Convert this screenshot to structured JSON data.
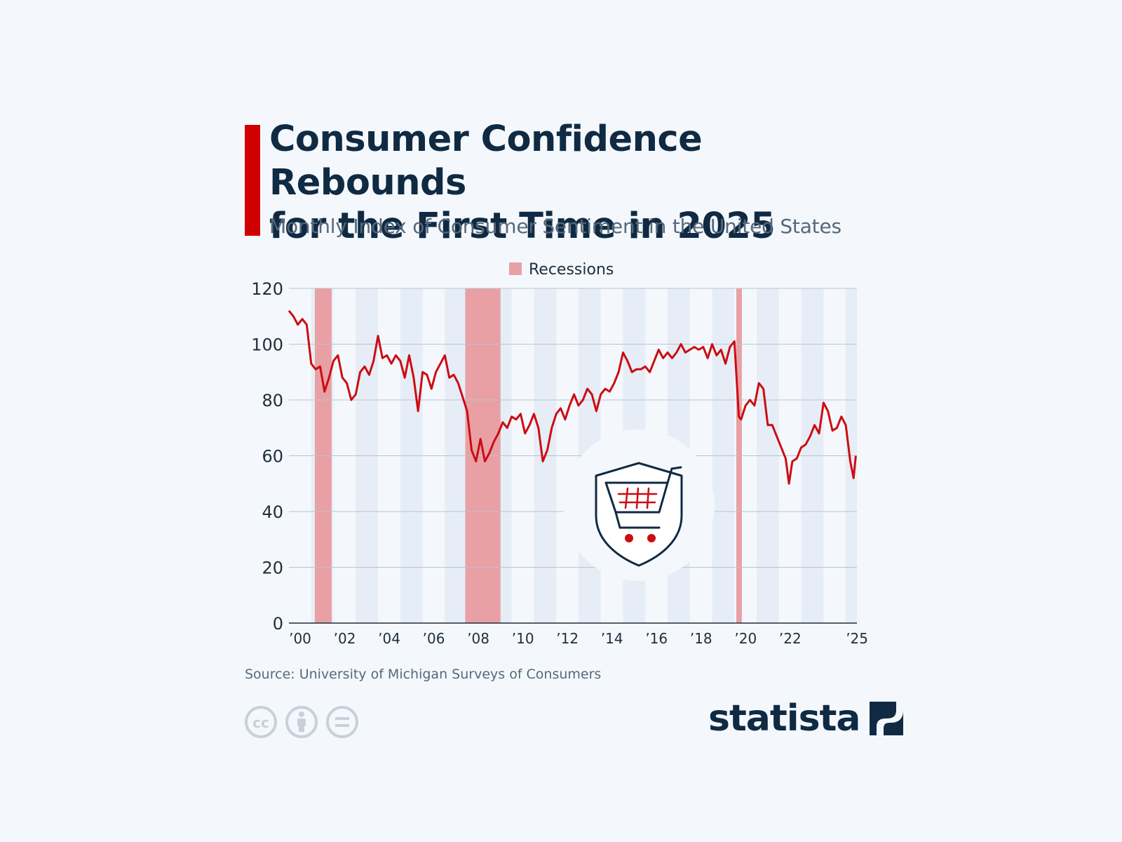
{
  "header": {
    "title_line1": "Consumer Confidence Rebounds",
    "title_line2": "for the First Time in 2025",
    "subtitle": "Monthly Index of Consumer Sentiment in the United States"
  },
  "colors": {
    "accent": "#d00000",
    "line": "#cc0c12",
    "recession": "#e8a0a5",
    "band": "#e6edf6",
    "title": "#102a43"
  },
  "chart_data": {
    "type": "line",
    "title": "Consumer Confidence Rebounds for the First Time in 2025",
    "subtitle": "Monthly Index of Consumer Sentiment in the United States",
    "xlabel": "",
    "ylabel": "",
    "ylim": [
      0,
      120
    ],
    "xlim": [
      "2000-01",
      "2025-06"
    ],
    "y_ticks": [
      0,
      20,
      40,
      60,
      80,
      100,
      120
    ],
    "x_ticks": [
      {
        "x": 2000,
        "label": "’00"
      },
      {
        "x": 2002,
        "label": "’02"
      },
      {
        "x": 2004,
        "label": "’04"
      },
      {
        "x": 2006,
        "label": "’06"
      },
      {
        "x": 2008,
        "label": "’08"
      },
      {
        "x": 2010,
        "label": "’10"
      },
      {
        "x": 2012,
        "label": "’12"
      },
      {
        "x": 2014,
        "label": "’14"
      },
      {
        "x": 2016,
        "label": "’16"
      },
      {
        "x": 2018,
        "label": "’18"
      },
      {
        "x": 2020,
        "label": "’20"
      },
      {
        "x": 2022,
        "label": "’22"
      },
      {
        "x": 2025,
        "label": "’25"
      }
    ],
    "grid": true,
    "legend": {
      "position": "top-center",
      "entries": [
        "Recessions"
      ]
    },
    "recessions": [
      {
        "start": "2001-03",
        "end": "2001-11"
      },
      {
        "start": "2007-12",
        "end": "2009-06"
      },
      {
        "start": "2020-02",
        "end": "2020-04"
      }
    ],
    "series": [
      {
        "x": [
          2000.0,
          2000.2,
          2000.4,
          2000.6,
          2000.8,
          2001.0,
          2001.2,
          2001.4,
          2001.6,
          2001.8,
          2002.0,
          2002.2,
          2002.4,
          2002.6,
          2002.8,
          2003.0,
          2003.2,
          2003.4,
          2003.6,
          2003.8,
          2004.0,
          2004.2,
          2004.4,
          2004.6,
          2004.8,
          2005.0,
          2005.2,
          2005.4,
          2005.6,
          2005.8,
          2006.0,
          2006.2,
          2006.4,
          2006.6,
          2006.8,
          2007.0,
          2007.2,
          2007.4,
          2007.6,
          2007.8,
          2008.0,
          2008.2,
          2008.4,
          2008.6,
          2008.8,
          2009.0,
          2009.2,
          2009.4,
          2009.6,
          2009.8,
          2010.0,
          2010.2,
          2010.4,
          2010.6,
          2010.8,
          2011.0,
          2011.2,
          2011.4,
          2011.6,
          2011.8,
          2012.0,
          2012.2,
          2012.4,
          2012.6,
          2012.8,
          2013.0,
          2013.2,
          2013.4,
          2013.6,
          2013.8,
          2014.0,
          2014.2,
          2014.4,
          2014.6,
          2014.8,
          2015.0,
          2015.2,
          2015.4,
          2015.6,
          2015.8,
          2016.0,
          2016.2,
          2016.4,
          2016.6,
          2016.8,
          2017.0,
          2017.2,
          2017.4,
          2017.6,
          2017.8,
          2018.0,
          2018.2,
          2018.4,
          2018.6,
          2018.8,
          2019.0,
          2019.2,
          2019.4,
          2019.6,
          2019.8,
          2020.0,
          2020.2,
          2020.3,
          2020.5,
          2020.7,
          2020.9,
          2021.1,
          2021.3,
          2021.5,
          2021.7,
          2021.9,
          2022.1,
          2022.3,
          2022.45,
          2022.6,
          2022.8,
          2023.0,
          2023.2,
          2023.4,
          2023.6,
          2023.8,
          2024.0,
          2024.2,
          2024.4,
          2024.6,
          2024.8,
          2025.0,
          2025.2,
          2025.35,
          2025.45
        ],
        "values": [
          112,
          110,
          107,
          109,
          107,
          93,
          91,
          92,
          83,
          88,
          94,
          96,
          88,
          86,
          80,
          82,
          90,
          92,
          89,
          94,
          103,
          95,
          96,
          93,
          96,
          94,
          88,
          96,
          88,
          76,
          90,
          89,
          84,
          90,
          93,
          96,
          88,
          89,
          86,
          81,
          76,
          62,
          58,
          66,
          58,
          61,
          65,
          68,
          72,
          70,
          74,
          73,
          75,
          68,
          71,
          75,
          70,
          58,
          62,
          70,
          75,
          77,
          73,
          78,
          82,
          78,
          80,
          84,
          82,
          76,
          82,
          84,
          83,
          86,
          90,
          97,
          94,
          90,
          91,
          91,
          92,
          90,
          94,
          98,
          95,
          97,
          95,
          97,
          100,
          97,
          98,
          99,
          98,
          99,
          95,
          100,
          96,
          98,
          93,
          99,
          101,
          74,
          73,
          78,
          80,
          78,
          86,
          84,
          71,
          71,
          67,
          63,
          59,
          50,
          58,
          59,
          63,
          64,
          67,
          71,
          68,
          79,
          76,
          69,
          70,
          74,
          71,
          58,
          52,
          60
        ],
        "color": "#cc0c12"
      }
    ]
  },
  "footer": {
    "source": "Source: University of Michigan Surveys of Consumers",
    "cc_label": "cc",
    "logo_text": "statista"
  }
}
